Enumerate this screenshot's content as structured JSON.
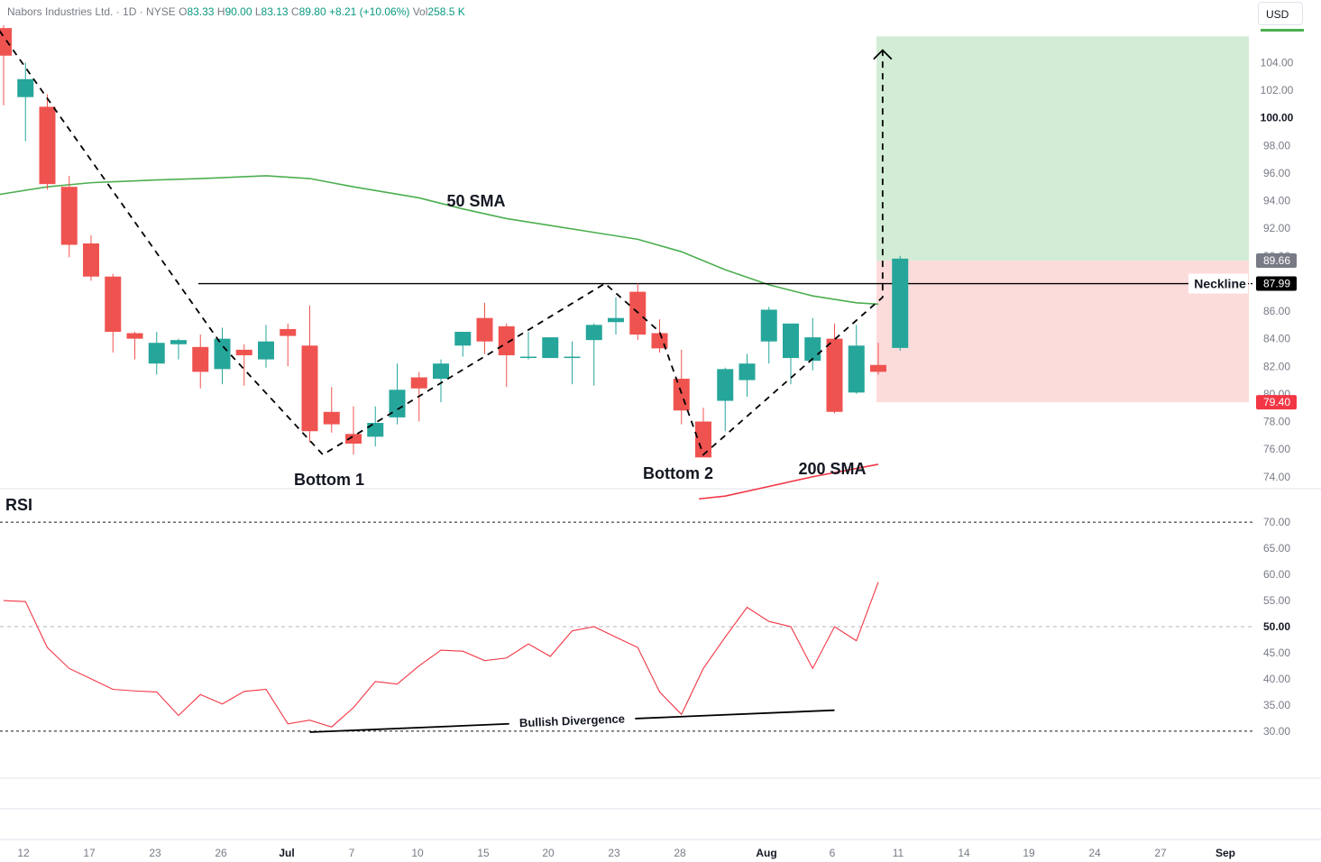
{
  "header": {
    "symbol": "Nabors Industries Ltd. · 1D · NYSE",
    "o_label": "O",
    "o": "83.33",
    "h_label": "H",
    "h": "90.00",
    "l_label": "L",
    "l": "83.13",
    "c_label": "C",
    "c": "89.80",
    "change": "+8.21 (+10.06%)",
    "vol_label": "Vol",
    "vol": "258.5 K"
  },
  "currency": "USD",
  "rsi_label": "RSI",
  "colors": {
    "up": "#26a69a",
    "down": "#ef5350",
    "sma50": "#4caf50",
    "sma200": "#f23645",
    "rsi": "#f23645",
    "target_zone": "#d2ecd5",
    "stop_zone": "#fcdcdb"
  },
  "chart_data": [
    {
      "type": "candlestick",
      "price_axis": {
        "ticks": [
          "104.00",
          "102.00",
          "100.00",
          "98.00",
          "96.00",
          "94.00",
          "92.00",
          "90.00",
          "88.00",
          "86.00",
          "84.00",
          "82.00",
          "80.00",
          "78.00",
          "76.00",
          "74.00"
        ],
        "range": [
          73.2,
          106.9
        ]
      },
      "time_axis": {
        "ticks": [
          "12",
          "17",
          "23",
          "26",
          "Jul",
          "7",
          "10",
          "15",
          "20",
          "23",
          "28",
          "Aug",
          "6",
          "11",
          "14",
          "19",
          "24",
          "27",
          "Sep"
        ]
      },
      "ohlc": [
        [
          106.5,
          106.7,
          100.9,
          104.5
        ],
        [
          101.5,
          104.0,
          98.3,
          102.8
        ],
        [
          100.8,
          101.7,
          94.8,
          95.2
        ],
        [
          95.0,
          95.8,
          89.9,
          90.8
        ],
        [
          90.9,
          91.5,
          88.2,
          88.5
        ],
        [
          88.5,
          88.7,
          83.0,
          84.5
        ],
        [
          84.4,
          84.5,
          82.5,
          84.0
        ],
        [
          82.2,
          84.5,
          81.4,
          83.7
        ],
        [
          83.6,
          84.0,
          82.5,
          83.9
        ],
        [
          83.4,
          84.3,
          80.4,
          81.6
        ],
        [
          81.8,
          84.8,
          80.7,
          84.0
        ],
        [
          83.2,
          83.6,
          80.6,
          82.8
        ],
        [
          82.5,
          85.0,
          81.9,
          83.8
        ],
        [
          84.7,
          85.1,
          82.0,
          84.2
        ],
        [
          83.5,
          86.4,
          76.5,
          77.3
        ],
        [
          78.7,
          80.5,
          77.2,
          77.8
        ],
        [
          77.1,
          79.1,
          75.6,
          76.4
        ],
        [
          76.9,
          79.1,
          76.2,
          77.9
        ],
        [
          78.3,
          82.2,
          77.8,
          80.3
        ],
        [
          81.2,
          81.6,
          78.0,
          80.4
        ],
        [
          81.1,
          82.5,
          79.4,
          82.2
        ],
        [
          83.5,
          84.5,
          82.7,
          84.5
        ],
        [
          85.5,
          86.6,
          82.9,
          83.8
        ],
        [
          84.9,
          85.1,
          80.5,
          82.8
        ],
        [
          82.7,
          84.5,
          82.5,
          82.7
        ],
        [
          82.6,
          84.1,
          82.6,
          84.1
        ],
        [
          82.6,
          83.8,
          80.7,
          82.7
        ],
        [
          83.9,
          85.1,
          80.6,
          85.0
        ],
        [
          85.2,
          87.0,
          84.3,
          85.5
        ],
        [
          87.4,
          88.0,
          83.9,
          84.3
        ],
        [
          84.4,
          85.4,
          83.0,
          83.3
        ],
        [
          81.1,
          83.2,
          77.8,
          78.8
        ],
        [
          78.0,
          79.0,
          75.5,
          75.4
        ],
        [
          79.5,
          81.9,
          77.3,
          81.8
        ],
        [
          81.0,
          82.9,
          79.8,
          82.2
        ],
        [
          83.8,
          86.3,
          82.2,
          86.1
        ],
        [
          82.6,
          85.0,
          80.7,
          85.1
        ],
        [
          82.4,
          85.5,
          81.7,
          84.1
        ],
        [
          84.0,
          85.1,
          78.6,
          78.7
        ],
        [
          80.1,
          85.0,
          80.0,
          83.5
        ],
        [
          82.1,
          83.7,
          81.4,
          81.6
        ],
        [
          83.33,
          90.0,
          83.13,
          89.8
        ]
      ],
      "sma50": {
        "label": "50 SMA",
        "points": [
          [
            -1,
            94.2
          ],
          [
            0,
            94.5
          ],
          [
            2,
            95.0
          ],
          [
            4,
            95.3
          ],
          [
            7,
            95.5
          ],
          [
            9,
            95.6
          ],
          [
            12,
            95.8
          ],
          [
            14,
            95.6
          ],
          [
            16,
            95.0
          ],
          [
            19,
            94.2
          ],
          [
            21,
            93.4
          ],
          [
            23,
            92.7
          ],
          [
            25,
            92.2
          ],
          [
            27,
            91.7
          ],
          [
            29,
            91.2
          ],
          [
            31,
            90.3
          ],
          [
            33,
            89.0
          ],
          [
            35,
            87.9
          ],
          [
            37,
            87.1
          ],
          [
            39,
            86.6
          ],
          [
            40,
            86.5
          ]
        ]
      },
      "sma200": {
        "label": "200 SMA",
        "points": [
          [
            31.8,
            72.4
          ],
          [
            33,
            72.6
          ],
          [
            35,
            73.3
          ],
          [
            37,
            74.0
          ],
          [
            40,
            74.9
          ]
        ]
      },
      "neckline": {
        "label": "Neckline",
        "value": 87.99,
        "value_label": "87.99"
      },
      "close_label": "89.66",
      "stop_label": "79.40",
      "target_zone": [
        89.66,
        105.9
      ],
      "stop_zone": [
        79.4,
        89.66
      ],
      "annotations": [
        "Bottom 1",
        "Bottom 2"
      ],
      "pattern_path": [
        [
          -0.5,
          107.0
        ],
        [
          10,
          83.5
        ],
        [
          14.6,
          75.6
        ],
        [
          27.5,
          88.0
        ],
        [
          30,
          84.5
        ],
        [
          32,
          75.6
        ],
        [
          40.2,
          87.0
        ],
        [
          40.2,
          104.9
        ]
      ],
      "projection_target": 104.9
    },
    {
      "type": "line",
      "name": "RSI",
      "y_ticks": [
        "70.00",
        "65.00",
        "60.00",
        "55.00",
        "50.00",
        "45.00",
        "40.00",
        "35.00",
        "30.00"
      ],
      "ylim": [
        21,
        73.3
      ],
      "levels": [
        70,
        50,
        30
      ],
      "values": [
        55.0,
        54.8,
        46.0,
        42.0,
        40.0,
        38.0,
        37.7,
        37.5,
        33.0,
        37.0,
        35.2,
        37.6,
        38.0,
        31.4,
        32.1,
        30.8,
        34.5,
        39.5,
        39.0,
        42.5,
        45.5,
        45.3,
        43.5,
        44.0,
        46.7,
        44.3,
        49.2,
        50.0,
        48.0,
        46.0,
        37.5,
        33.2,
        42.0,
        48.0,
        53.7,
        51.0,
        50.0,
        42.0,
        50.0,
        47.3,
        58.5
      ],
      "divergence": {
        "label": "Bullish Divergence",
        "points": [
          [
            14,
            29.8
          ],
          [
            38,
            34.0
          ]
        ]
      }
    }
  ]
}
